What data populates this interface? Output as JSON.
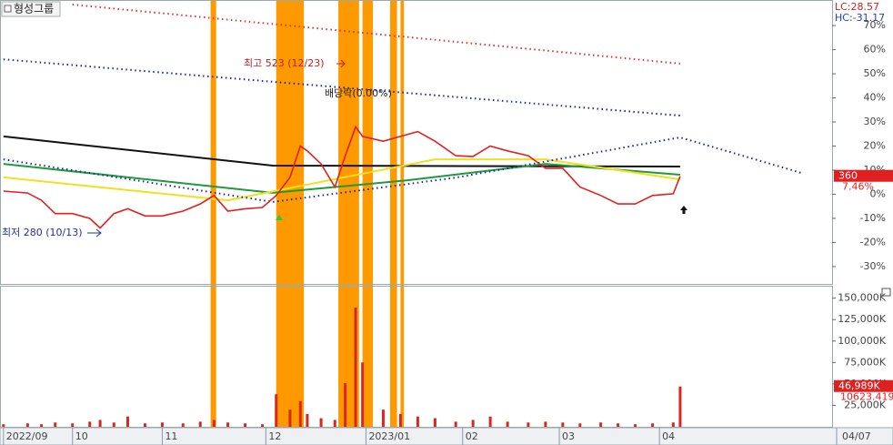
{
  "chart_data": [
    {
      "type": "line",
      "title": "형성그룹",
      "color": "#e02020",
      "lc_label": "LC:28.57",
      "hc_label": "HC:-31.17",
      "annotations": [
        "최고 523 (12/23)",
        "배당락(0.00%)",
        "최저 280 (10/13)"
      ],
      "last_price": 360,
      "xlim": [
        0,
        241
      ],
      "ylim": [
        -37.2,
        80.6
      ],
      "yticks": [
        {
          "value": 70,
          "label": "70%"
        },
        {
          "value": 60,
          "label": "60%"
        },
        {
          "value": 50,
          "label": "50%"
        },
        {
          "value": 40,
          "label": "40%"
        },
        {
          "value": 30,
          "label": "30%"
        },
        {
          "value": 20,
          "label": "20%"
        },
        {
          "value": 10,
          "label": "10%"
        },
        {
          "value": 0,
          "label": "0%"
        },
        {
          "value": -10,
          "label": "-10%"
        },
        {
          "value": -20,
          "label": "-20%"
        },
        {
          "value": -30,
          "label": "-30%"
        }
      ],
      "x": [
        1,
        8,
        12,
        16,
        21,
        26,
        29,
        33,
        37,
        42,
        47,
        53,
        58,
        62,
        66,
        71,
        76,
        80,
        84,
        87,
        89,
        93,
        97,
        100,
        103,
        105,
        111,
        116,
        121,
        126,
        132,
        137,
        142,
        147,
        153,
        158,
        163,
        168,
        174,
        179,
        184,
        189,
        195,
        197
      ],
      "values": [
        1.3,
        0.5,
        -2.5,
        -8,
        -8,
        -10,
        -14,
        -8,
        -6,
        -9,
        -9,
        -7,
        -4,
        -0.5,
        -7,
        -6,
        -5.5,
        -0.5,
        7,
        20,
        18,
        12.6,
        3,
        16,
        28,
        24,
        22,
        24,
        26,
        22,
        16,
        15.7,
        20,
        18,
        16,
        10.8,
        10.8,
        3,
        -0.5,
        -4,
        -4,
        -0.5,
        0.2,
        7.46
      ],
      "value_labels": [
        null,
        null,
        null,
        null,
        null,
        null,
        null,
        null,
        null,
        null,
        null,
        null,
        null,
        null,
        null,
        null,
        null,
        null,
        null,
        null,
        null,
        null,
        null,
        null,
        null,
        null,
        null,
        null,
        null,
        null,
        null,
        null,
        null,
        null,
        null,
        null,
        null,
        null,
        null,
        null,
        null,
        null,
        null,
        "7.46%"
      ],
      "moving_averages": [
        {
          "color": "#111111",
          "dash": false,
          "x": [
            1,
            79,
            197
          ],
          "values": [
            24,
            11.9,
            11.5
          ]
        },
        {
          "color": "#1e9a3c",
          "dash": false,
          "x": [
            1,
            79,
            118,
            158,
            197
          ],
          "values": [
            12.6,
            0.6,
            5.8,
            12.6,
            8.1
          ]
        },
        {
          "color": "#f0e020",
          "dash": false,
          "x": [
            1,
            66,
            126,
            158,
            197
          ],
          "values": [
            7,
            -2.5,
            14.5,
            14.5,
            6.2
          ]
        },
        {
          "color": "#e03030",
          "dash": true,
          "x": [
            21,
            197
          ],
          "values": [
            78.7,
            54.2
          ]
        },
        {
          "color": "#1a2a9a",
          "dash": true,
          "x": [
            1,
            197
          ],
          "values": [
            56,
            32.6
          ]
        },
        {
          "color": "#1a2a9a",
          "dash": true,
          "x": [
            1,
            79,
            132,
            197,
            232
          ],
          "values": [
            14.5,
            -3.2,
            6.9,
            23.6,
            8.9
          ]
        }
      ],
      "highlight_color": "#ff9900",
      "highlight_bands": [
        [
          61,
          62.6
        ],
        [
          80,
          88
        ],
        [
          98,
          104
        ],
        [
          105,
          108
        ],
        [
          113,
          115
        ],
        [
          116,
          117
        ]
      ]
    },
    {
      "type": "bar",
      "color": "#d8281e",
      "xlim": [
        0,
        241
      ],
      "ylim": [
        0,
        164500
      ],
      "yticks": [
        {
          "value": 150000,
          "label": "150,000K"
        },
        {
          "value": 125000,
          "label": "125,000K"
        },
        {
          "value": 100000,
          "label": "100,000K"
        },
        {
          "value": 75000,
          "label": "75,000K"
        },
        {
          "value": 50000,
          "label": "50,000K"
        },
        {
          "value": 25000,
          "label": "25,000K"
        }
      ],
      "xticks": [
        {
          "value": 1,
          "label": "2022/09"
        },
        {
          "value": 21,
          "label": "10"
        },
        {
          "value": 47,
          "label": "11"
        },
        {
          "value": 77,
          "label": "12"
        },
        {
          "value": 106,
          "label": "2023/01"
        },
        {
          "value": 134,
          "label": "02"
        },
        {
          "value": 162,
          "label": "03"
        },
        {
          "value": 191,
          "label": "04"
        }
      ],
      "date_label": "04/07",
      "ma_value": 10623.419,
      "x": [
        1,
        8,
        12,
        16,
        21,
        26,
        29,
        33,
        37,
        42,
        47,
        53,
        58,
        62,
        66,
        71,
        76,
        80,
        84,
        87,
        89,
        93,
        97,
        100,
        103,
        105,
        111,
        116,
        121,
        126,
        132,
        137,
        142,
        147,
        153,
        158,
        163,
        168,
        174,
        179,
        184,
        189,
        195,
        197
      ],
      "values": [
        3000,
        4000,
        3000,
        5000,
        4000,
        6000,
        8000,
        5000,
        12000,
        4000,
        5000,
        4000,
        6000,
        8000,
        5000,
        4000,
        3000,
        38000,
        20000,
        30000,
        15000,
        10000,
        8000,
        51000,
        139000,
        75000,
        20000,
        15000,
        12000,
        10000,
        6000,
        8000,
        12000,
        6000,
        5000,
        6000,
        5000,
        4000,
        5000,
        4000,
        3000,
        4000,
        5000,
        46989
      ],
      "value_labels": [
        null,
        null,
        null,
        null,
        null,
        null,
        null,
        null,
        null,
        null,
        null,
        null,
        null,
        null,
        null,
        null,
        null,
        null,
        null,
        null,
        null,
        null,
        null,
        null,
        null,
        null,
        null,
        null,
        null,
        null,
        null,
        null,
        null,
        null,
        null,
        null,
        null,
        null,
        null,
        null,
        null,
        null,
        null,
        "46,989K"
      ]
    }
  ]
}
